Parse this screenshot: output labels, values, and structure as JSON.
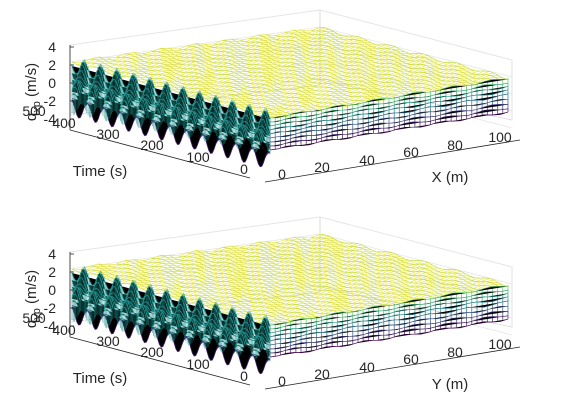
{
  "chart_data": [
    {
      "type": "surface-mesh",
      "panel": "top",
      "zlabel_main": "q",
      "zlabel_sub": "xp",
      "zlabel_unit": " (m/s)",
      "xlabel": "X (m)",
      "ylabel": "Time (s)",
      "x_ticks": [
        "0",
        "20",
        "40",
        "60",
        "80",
        "100"
      ],
      "y_ticks": [
        "0",
        "100",
        "200",
        "300",
        "400",
        "500"
      ],
      "z_ticks": [
        "-4",
        "-2",
        "0",
        "2",
        "4"
      ],
      "xlim": [
        0,
        100
      ],
      "ylim": [
        0,
        500
      ],
      "zlim": [
        -4,
        4
      ],
      "grid": true,
      "colormap": [
        "#440154",
        "#3b528b",
        "#21918c",
        "#5ec962",
        "#fde725"
      ]
    },
    {
      "type": "surface-mesh",
      "panel": "bottom",
      "zlabel_main": "q",
      "zlabel_sub": "yp",
      "zlabel_unit": " (m/s)",
      "xlabel": "Y (m)",
      "ylabel": "Time (s)",
      "x_ticks": [
        "0",
        "20",
        "40",
        "60",
        "80",
        "100"
      ],
      "y_ticks": [
        "0",
        "100",
        "200",
        "300",
        "400",
        "500"
      ],
      "z_ticks": [
        "-4",
        "-2",
        "0",
        "2",
        "4"
      ],
      "xlim": [
        0,
        100
      ],
      "ylim": [
        0,
        500
      ],
      "zlim": [
        -4,
        4
      ],
      "grid": true,
      "colormap": [
        "#440154",
        "#3b528b",
        "#21918c",
        "#5ec962",
        "#fde725"
      ]
    }
  ]
}
